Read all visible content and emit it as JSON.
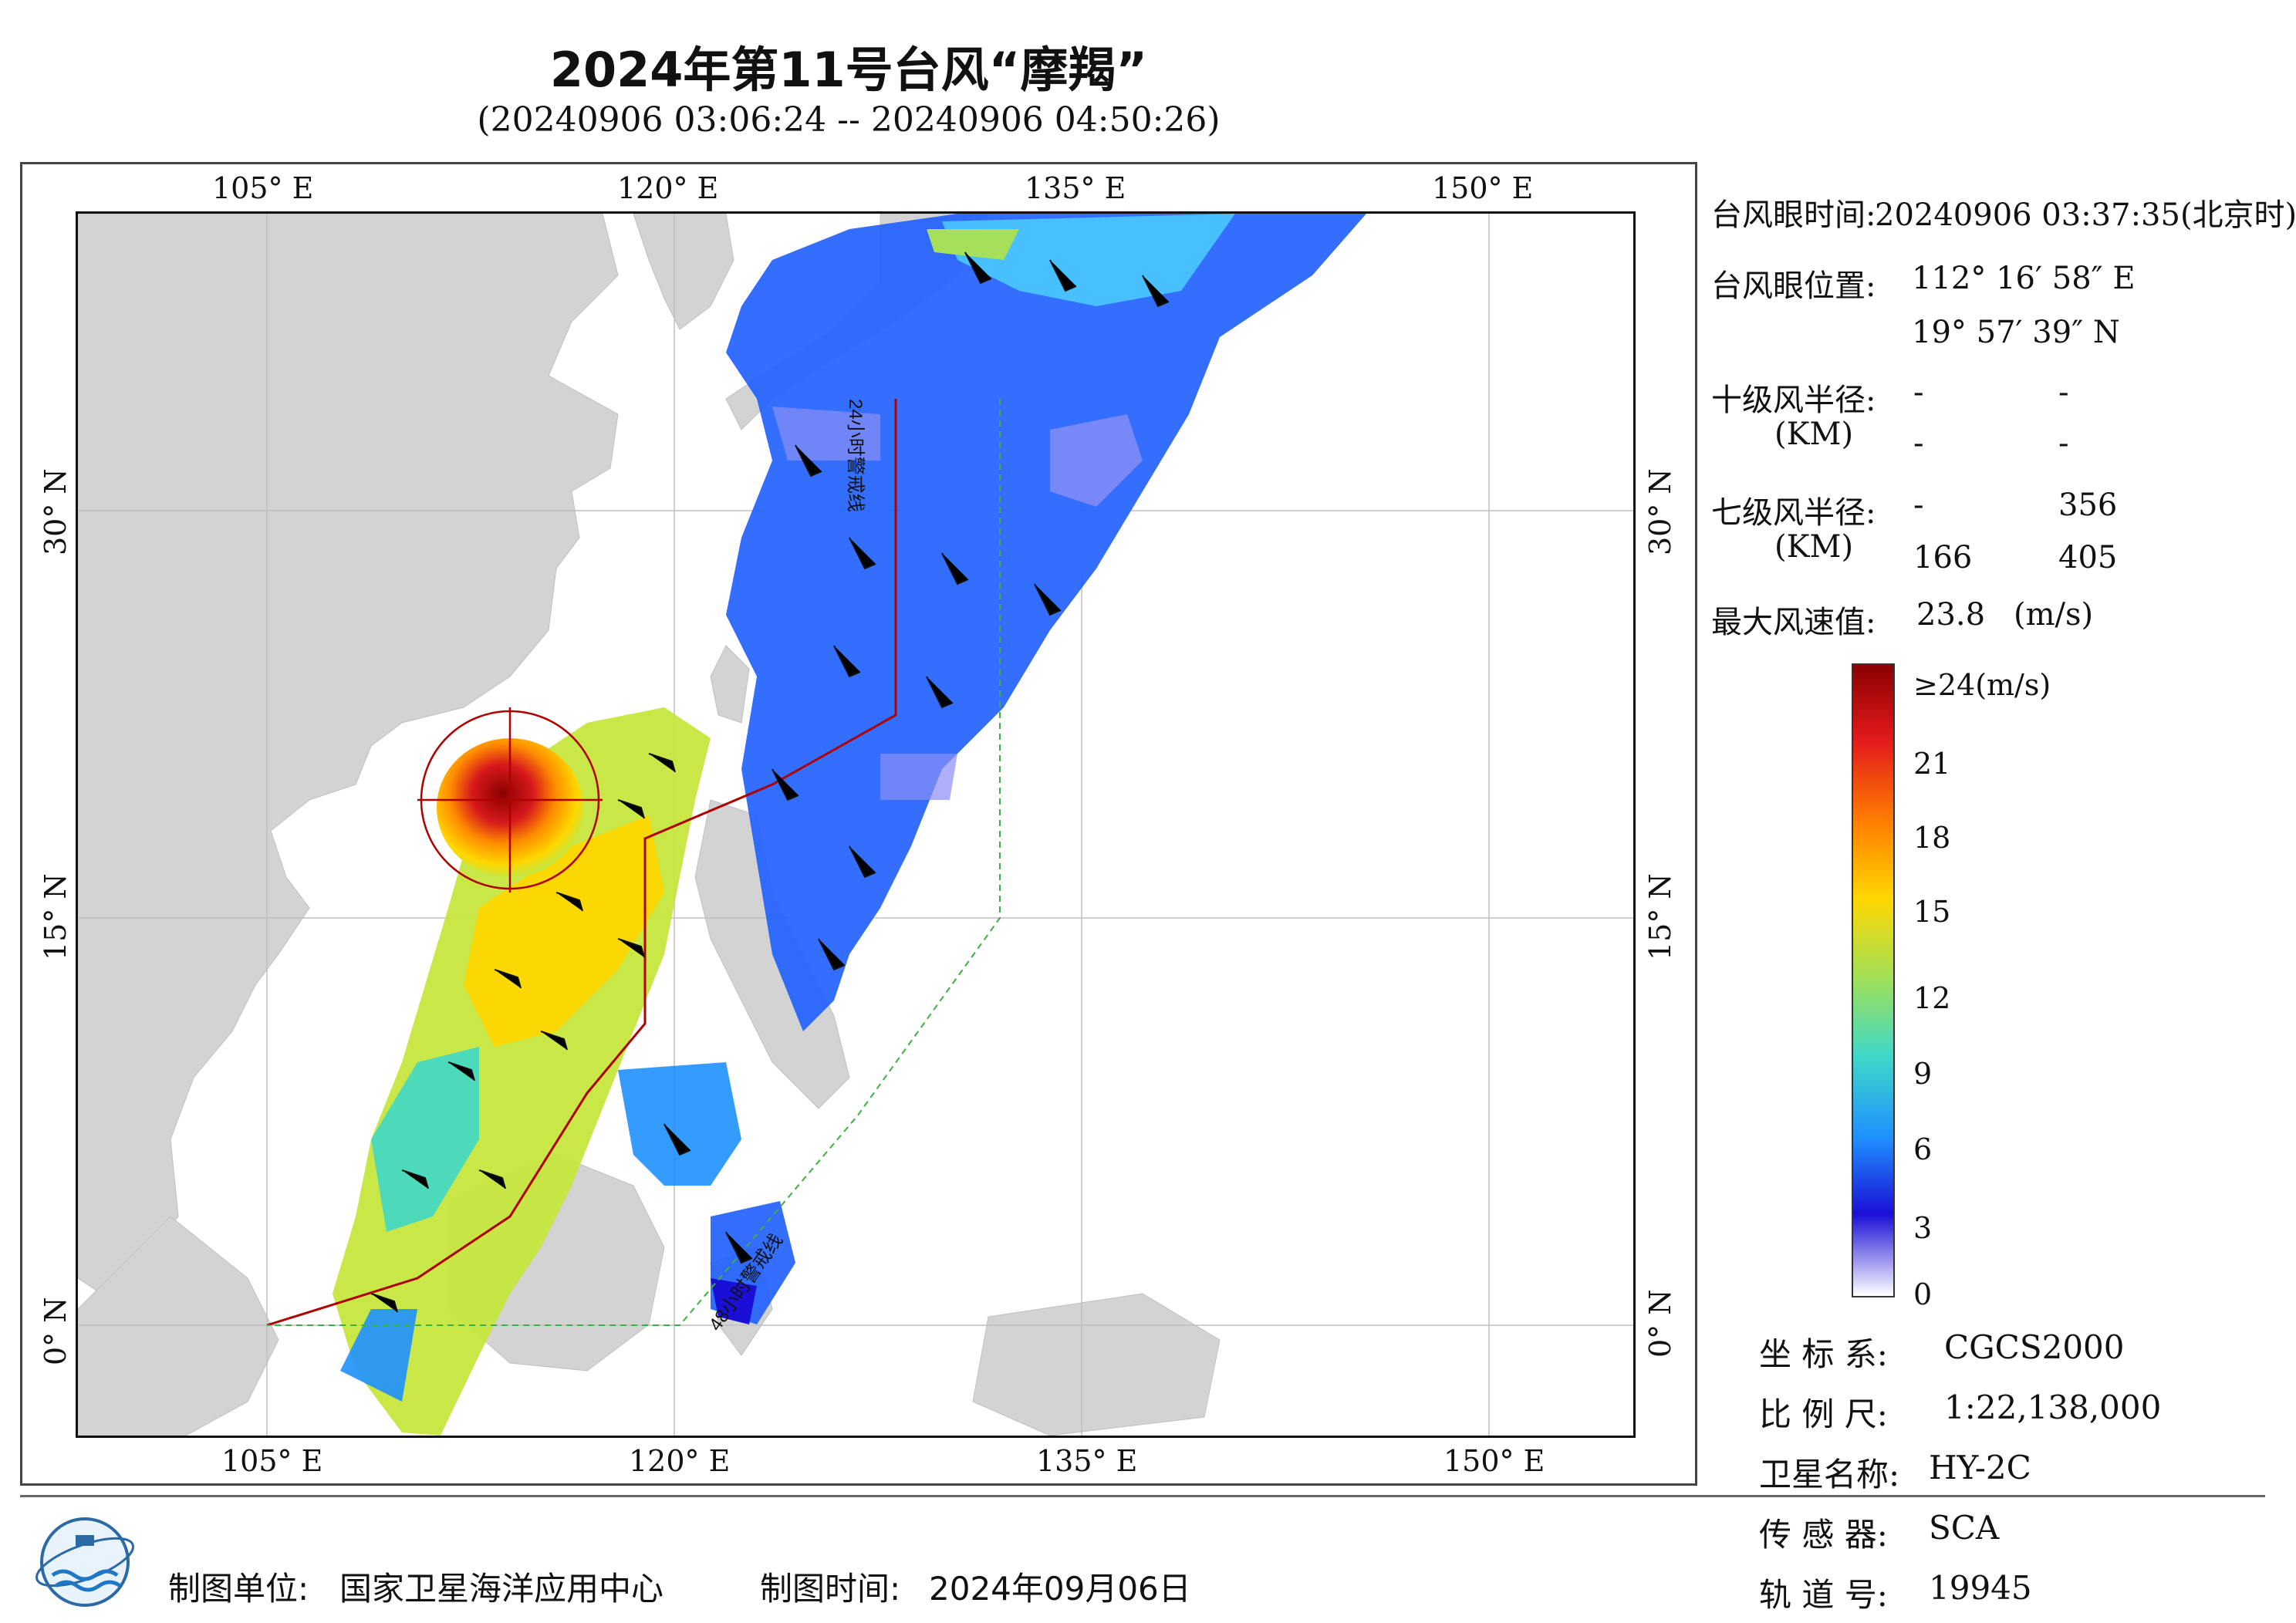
{
  "title": "2024年第11号台风“摩羯”",
  "subtitle": "(20240906 03:06:24 -- 20240906 04:50:26)",
  "axes": {
    "lon_labels": [
      "105° E",
      "120° E",
      "135° E",
      "150° E"
    ],
    "lat_labels": [
      "30° N",
      "15° N",
      "0° N"
    ]
  },
  "track_labels": {
    "line24": "24小时警戒线",
    "line48": "48小时警戒线"
  },
  "info": {
    "eye_time_label": "台风眼时间:",
    "eye_time_value": "20240906 03:37:35(北京时)",
    "eye_pos_label": "台风眼位置:",
    "eye_lon": "112° 16′ 58″ E",
    "eye_lat": "19° 57′ 39″ N",
    "r10_label": "十级风半径:",
    "r10_unit": "(KM)",
    "r10_values": [
      "-",
      "-",
      "-",
      "-"
    ],
    "r7_label": "七级风半径:",
    "r7_unit": "(KM)",
    "r7_values": [
      "-",
      "356",
      "166",
      "405"
    ],
    "max_wind_label": "最大风速值:",
    "max_wind_value": "23.8",
    "max_wind_unit": "(m/s)"
  },
  "colorbar": {
    "top_label": "≥24(m/s)",
    "labels": [
      "21",
      "18",
      "15",
      "12",
      "9",
      "6",
      "3",
      "0"
    ],
    "colors": [
      "#8b0000",
      "#e41a1c",
      "#ff7f00",
      "#ffd700",
      "#c6e63c",
      "#3fd8c8",
      "#1e90ff",
      "#0033cc",
      "#1a0fd6",
      "#b8b8f0",
      "#ffffff"
    ]
  },
  "meta": {
    "crs_label": "坐 标 系:",
    "crs_value": "CGCS2000",
    "scale_label": "比 例 尺:",
    "scale_value": "1:22,138,000",
    "satellite_label": "卫星名称:",
    "satellite_value": "HY-2C",
    "sensor_label": "传 感 器:",
    "sensor_value": "SCA",
    "orbit_label": "轨 道 号:",
    "orbit_value": "19945"
  },
  "footer": {
    "unit_label": "制图单位:",
    "unit_value": "国家卫星海洋应用中心",
    "time_label": "制图时间:",
    "time_value": "2024年09月06日"
  }
}
